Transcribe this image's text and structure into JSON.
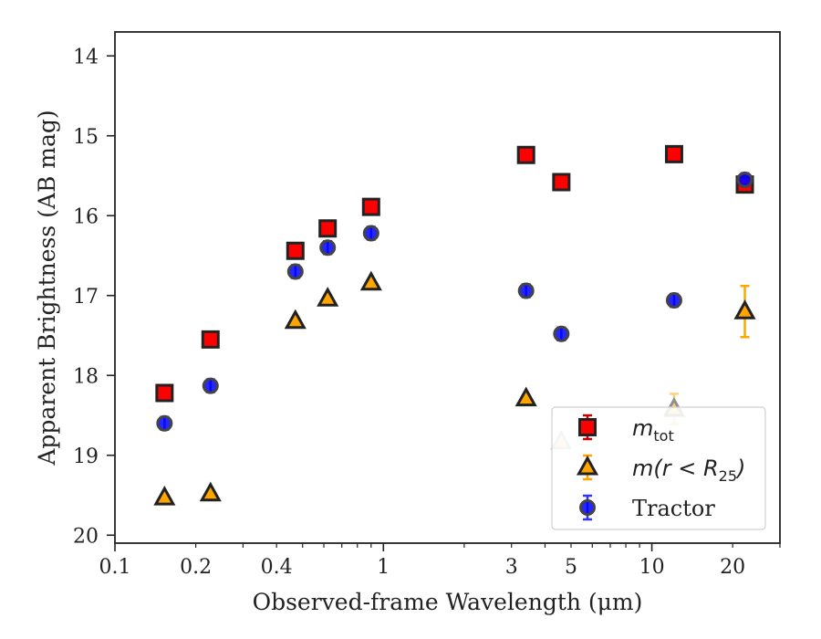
{
  "chart_data": {
    "type": "scatter",
    "xlabel": "Observed-frame Wavelength (μm)",
    "ylabel": "Apparent Brightness (AB mag)",
    "x_scale": "log",
    "xlim": [
      0.1,
      30
    ],
    "ylim": [
      20.1,
      13.7
    ],
    "y_inverted": true,
    "x_ticks": [
      {
        "value": 0.1,
        "label": "0.1"
      },
      {
        "value": 0.2,
        "label": "0.2"
      },
      {
        "value": 0.4,
        "label": "0.4"
      },
      {
        "value": 1,
        "label": "1"
      },
      {
        "value": 3,
        "label": "3"
      },
      {
        "value": 5,
        "label": "5"
      },
      {
        "value": 10,
        "label": "10"
      },
      {
        "value": 20,
        "label": "20"
      }
    ],
    "y_ticks": [
      {
        "value": 14,
        "label": "14"
      },
      {
        "value": 15,
        "label": "15"
      },
      {
        "value": 16,
        "label": "16"
      },
      {
        "value": 17,
        "label": "17"
      },
      {
        "value": 18,
        "label": "18"
      },
      {
        "value": 19,
        "label": "19"
      },
      {
        "value": 20,
        "label": "20"
      }
    ],
    "grid": false,
    "legend_position": "lower-right",
    "series": [
      {
        "name": "m_tot",
        "legend_label": "m",
        "legend_sub": "tot",
        "marker": "square",
        "color": "#ff0000",
        "errcolor": "#cc0000",
        "points": [
          {
            "x": 0.153,
            "y": 18.22,
            "err": 0.05
          },
          {
            "x": 0.227,
            "y": 17.55,
            "err": 0.05
          },
          {
            "x": 0.47,
            "y": 16.44,
            "err": 0.05
          },
          {
            "x": 0.62,
            "y": 16.16,
            "err": 0.05
          },
          {
            "x": 0.9,
            "y": 15.89,
            "err": 0.05
          },
          {
            "x": 3.4,
            "y": 15.24,
            "err": 0.05
          },
          {
            "x": 4.6,
            "y": 15.58,
            "err": 0.05
          },
          {
            "x": 12.1,
            "y": 15.23,
            "err": 0.05
          },
          {
            "x": 22.2,
            "y": 15.61,
            "err": 0.08
          }
        ]
      },
      {
        "name": "m(r < R25)",
        "legend_label": "m(r < R",
        "legend_sub": "25",
        "legend_close": ")",
        "marker": "triangle",
        "color": "#ffa500",
        "errcolor": "#ffa500",
        "points": [
          {
            "x": 0.153,
            "y": 19.53,
            "err": 0.03,
            "alpha": 1
          },
          {
            "x": 0.227,
            "y": 19.48,
            "err": 0.03,
            "alpha": 1
          },
          {
            "x": 0.47,
            "y": 17.32,
            "err": 0.03,
            "alpha": 1
          },
          {
            "x": 0.62,
            "y": 17.04,
            "err": 0.03,
            "alpha": 1
          },
          {
            "x": 0.9,
            "y": 16.84,
            "err": 0.03,
            "alpha": 1
          },
          {
            "x": 3.4,
            "y": 18.29,
            "err": 0.03,
            "alpha": 1
          },
          {
            "x": 4.6,
            "y": 18.83,
            "err": 0.06,
            "alpha": 0.3
          },
          {
            "x": 12.1,
            "y": 18.42,
            "err": 0.19,
            "alpha": 0.5
          },
          {
            "x": 22.2,
            "y": 17.2,
            "err": 0.32,
            "alpha": 1
          }
        ]
      },
      {
        "name": "Tractor",
        "legend_label": "Tractor",
        "marker": "circle",
        "color": "#0000ff",
        "errcolor": "#3333ff",
        "points": [
          {
            "x": 0.153,
            "y": 18.6,
            "err": 0.08
          },
          {
            "x": 0.227,
            "y": 18.13,
            "err": 0.08
          },
          {
            "x": 0.47,
            "y": 16.7,
            "err": 0.08
          },
          {
            "x": 0.62,
            "y": 16.4,
            "err": 0.08
          },
          {
            "x": 0.9,
            "y": 16.22,
            "err": 0.08
          },
          {
            "x": 3.4,
            "y": 16.94,
            "err": 0.08
          },
          {
            "x": 4.6,
            "y": 17.48,
            "err": 0.08
          },
          {
            "x": 12.1,
            "y": 17.06,
            "err": 0.08
          },
          {
            "x": 22.2,
            "y": 15.55,
            "err": 0.08
          }
        ]
      }
    ]
  }
}
